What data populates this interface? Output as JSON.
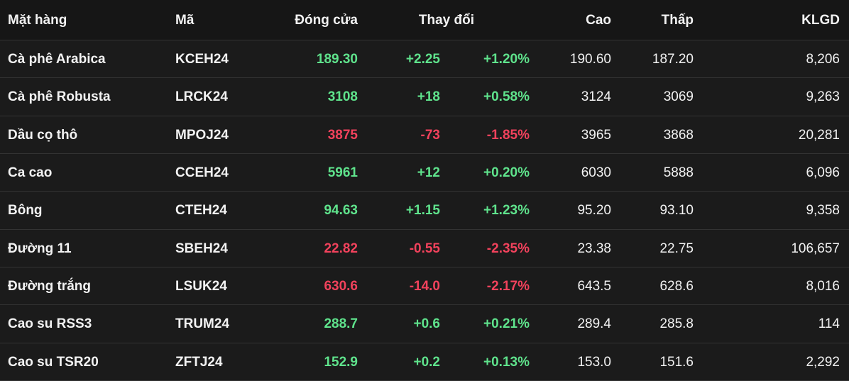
{
  "table": {
    "headers": [
      "Mặt hàng",
      "Mã",
      "Đóng cửa",
      "Thay đổi",
      "Cao",
      "Thấp",
      "KLGD"
    ],
    "colors": {
      "up": "#5fe38c",
      "down": "#f2425c"
    },
    "rows": [
      [
        "Cà phê Arabica",
        "KCEH24",
        "189.30",
        "+2.25",
        "+1.20%",
        "190.60",
        "187.20",
        "8,206"
      ],
      [
        "Cà phê Robusta",
        "LRCK24",
        "3108",
        "+18",
        "+0.58%",
        "3124",
        "3069",
        "9,263"
      ],
      [
        "Dầu cọ thô",
        "MPOJ24",
        "3875",
        "-73",
        "-1.85%",
        "3965",
        "3868",
        "20,281"
      ],
      [
        "Ca cao",
        "CCEH24",
        "5961",
        "+12",
        "+0.20%",
        "6030",
        "5888",
        "6,096"
      ],
      [
        "Bông",
        "CTEH24",
        "94.63",
        "+1.15",
        "+1.23%",
        "95.20",
        "93.10",
        "9,358"
      ],
      [
        "Đường 11",
        "SBEH24",
        "22.82",
        "-0.55",
        "-2.35%",
        "23.38",
        "22.75",
        "106,657"
      ],
      [
        "Đường trắng",
        "LSUK24",
        "630.6",
        "-14.0",
        "-2.17%",
        "643.5",
        "628.6",
        "8,016"
      ],
      [
        "Cao su RSS3",
        "TRUM24",
        "288.7",
        "+0.6",
        "+0.21%",
        "289.4",
        "285.8",
        "114"
      ],
      [
        "Cao su TSR20",
        "ZFTJ24",
        "152.9",
        "+0.2",
        "+0.13%",
        "153.0",
        "151.6",
        "2,292"
      ]
    ]
  }
}
